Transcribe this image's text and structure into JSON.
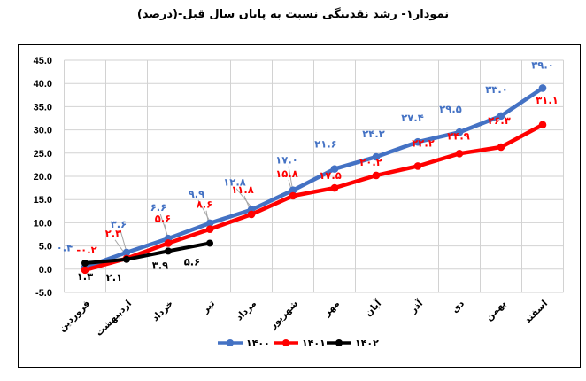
{
  "title": "نمودار۱- رشد نقدینگی نسبت به پایان سال قبل-(درصد)",
  "chart_data": {
    "type": "line",
    "title": "نمودار۱- رشد نقدینگی نسبت به پایان سال قبل-(درصد)",
    "categories": [
      "فروردین",
      "اردیبهشت",
      "خرداد",
      "تیر",
      "مرداد",
      "شهریور",
      "مهر",
      "آبان",
      "آذر",
      "دی",
      "بهمن",
      "اسفند"
    ],
    "series": [
      {
        "name": "۱۴۰۰",
        "color": "#4472C4",
        "values": [
          0.4,
          3.6,
          6.6,
          9.9,
          12.8,
          17.0,
          21.6,
          24.2,
          27.4,
          29.5,
          33.0,
          39.0
        ],
        "labels": [
          "۰.۴",
          "۳.۶",
          "۶.۶",
          "۹.۹",
          "۱۲.۸",
          "۱۷.۰",
          "۲۱.۶",
          "۲۴.۲",
          "۲۷.۴",
          "۲۹.۵",
          "۳۳.۰",
          "۳۹.۰"
        ]
      },
      {
        "name": "۱۴۰۱",
        "color": "#FF0000",
        "values": [
          -0.2,
          2.3,
          5.6,
          8.6,
          11.8,
          15.8,
          17.5,
          20.2,
          22.2,
          24.9,
          26.3,
          31.1
        ],
        "labels": [
          "-۰.۲",
          "۲.۳",
          "۵.۶",
          "۸.۶",
          "۱۱.۸",
          "۱۵.۸",
          "۱۷.۵",
          "۲۰.۲",
          "۲۲.۲",
          "۲۴.۹",
          "۲۶.۳",
          "۳۱.۱"
        ]
      },
      {
        "name": "۱۴۰۲",
        "color": "#000000",
        "values": [
          1.3,
          2.1,
          3.9,
          5.6
        ],
        "labels": [
          "۱.۳",
          "۲.۱",
          "۳.۹",
          "۵.۶"
        ]
      }
    ],
    "ylim": [
      -5,
      45
    ],
    "ytick_step": 5,
    "yticks": [
      "45.0",
      "40.0",
      "35.0",
      "30.0",
      "25.0",
      "20.0",
      "15.0",
      "10.0",
      "5.0",
      "0.0",
      "-5.0"
    ],
    "xlabel": "",
    "ylabel": "",
    "grid": true,
    "gridline_color": "#D2D2D2",
    "leader_color": "#A6A6A6",
    "legend_position": "bottom"
  }
}
